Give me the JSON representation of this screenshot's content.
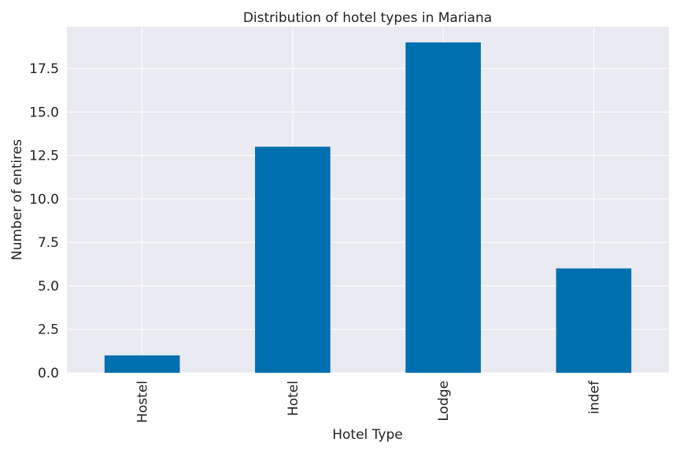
{
  "chart_data": {
    "type": "bar",
    "title": "Distribution of hotel types in Mariana",
    "xlabel": "Hotel Type",
    "ylabel": "Number of entires",
    "categories": [
      "Hostel",
      "Hotel",
      "Lodge",
      "indef"
    ],
    "values": [
      1,
      13,
      19,
      6
    ],
    "ylim": [
      0,
      19.9
    ],
    "yticks": [
      0.0,
      2.5,
      5.0,
      7.5,
      10.0,
      12.5,
      15.0,
      17.5
    ],
    "ytick_labels": [
      "0.0",
      "2.5",
      "5.0",
      "7.5",
      "10.0",
      "12.5",
      "15.0",
      "17.5"
    ],
    "grid": true,
    "colors": {
      "bar": "#006fb0",
      "background": "#eaeaf2",
      "grid": "#ffffff"
    }
  }
}
